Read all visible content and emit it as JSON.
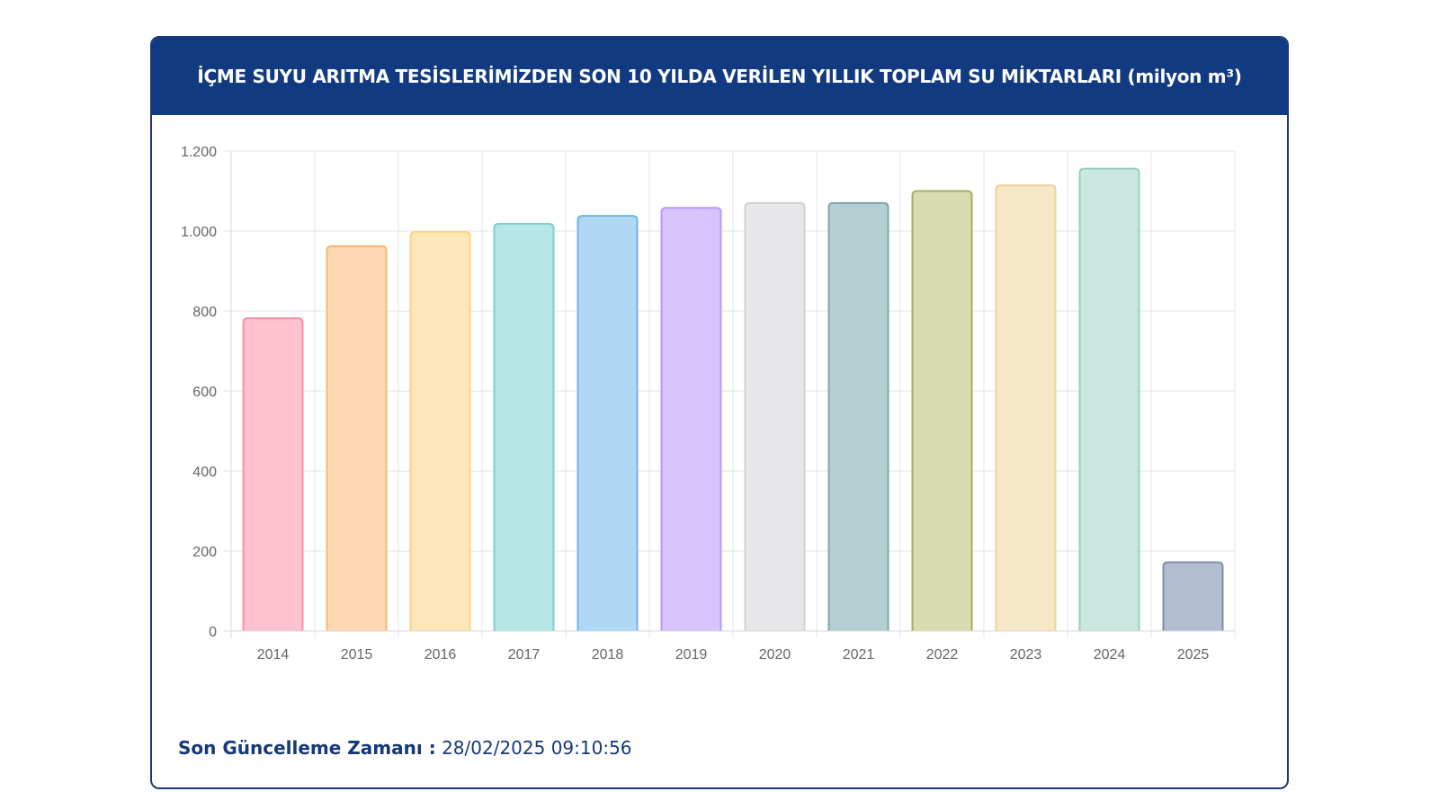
{
  "header": {
    "title": "İÇME SUYU ARITMA TESİSLERİMİZDEN SON 10 YILDA VERİLEN YILLIK TOPLAM SU MİKTARLARI (milyon m³)"
  },
  "footer": {
    "label": "Son Güncelleme Zamanı :",
    "value": "28/02/2025 09:10:56"
  },
  "chart_data": {
    "type": "bar",
    "title": "İÇME SUYU ARITMA TESİSLERİMİZDEN SON 10 YILDA VERİLEN YILLIK TOPLAM SU MİKTARLARI (milyon m³)",
    "xlabel": "",
    "ylabel": "",
    "categories": [
      "2014",
      "2015",
      "2016",
      "2017",
      "2018",
      "2019",
      "2020",
      "2021",
      "2022",
      "2023",
      "2024",
      "2025"
    ],
    "values": [
      782,
      962,
      998,
      1018,
      1038,
      1058,
      1070,
      1070,
      1100,
      1114,
      1156,
      172
    ],
    "ylim": [
      0,
      1200
    ],
    "yticks": [
      0,
      200,
      400,
      600,
      800,
      1000,
      1200
    ],
    "ytick_labels": [
      "0",
      "200",
      "400",
      "600",
      "800",
      "1.000",
      "1.200"
    ],
    "grid": true,
    "legend": "none",
    "colors": [
      {
        "fill": "#ffc2d0",
        "stroke": "#ff8fa8"
      },
      {
        "fill": "#fed8b2",
        "stroke": "#fdb574"
      },
      {
        "fill": "#fde7b9",
        "stroke": "#fbd47e"
      },
      {
        "fill": "#b7e6e6",
        "stroke": "#7ccfcf"
      },
      {
        "fill": "#b0d8f5",
        "stroke": "#6cb5e8"
      },
      {
        "fill": "#d8c4fd",
        "stroke": "#b898fb"
      },
      {
        "fill": "#e7e7e9",
        "stroke": "#d2d2d6"
      },
      {
        "fill": "#b4cfd2",
        "stroke": "#7fa6ab"
      },
      {
        "fill": "#d8dcb0",
        "stroke": "#a6ac67"
      },
      {
        "fill": "#f7e8c7",
        "stroke": "#ecd39a"
      },
      {
        "fill": "#c9e7df",
        "stroke": "#97cfc0"
      },
      {
        "fill": "#b2becf",
        "stroke": "#7e8fab"
      }
    ]
  }
}
